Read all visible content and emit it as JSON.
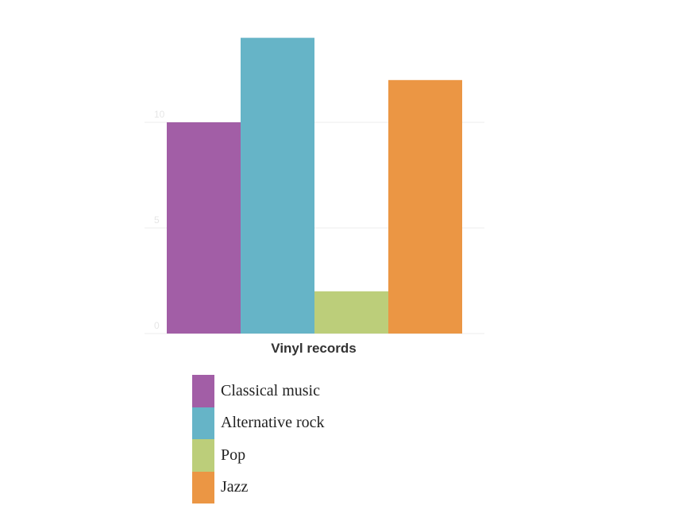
{
  "chart_data": {
    "type": "bar",
    "xlabel": "Vinyl records",
    "ylim": [
      0,
      14
    ],
    "yticks": [
      0,
      5,
      10
    ],
    "grid": true,
    "legend_position": "bottom",
    "series": [
      {
        "name": "Classical music",
        "value": 10,
        "color": "#a25ea6"
      },
      {
        "name": "Alternative rock",
        "value": 14,
        "color": "#66b4c7"
      },
      {
        "name": "Pop",
        "value": 2,
        "color": "#bcce7a"
      },
      {
        "name": "Jazz",
        "value": 12,
        "color": "#eb9644"
      }
    ]
  }
}
